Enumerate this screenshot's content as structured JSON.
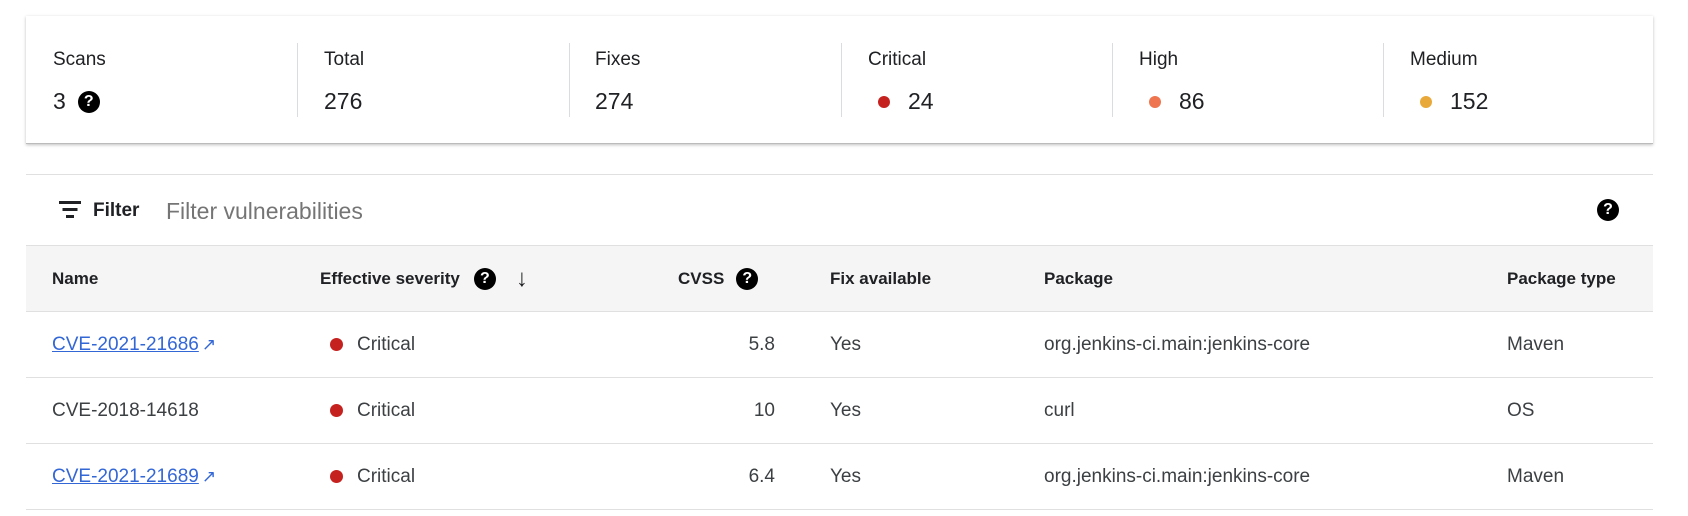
{
  "summary": {
    "scans": {
      "label": "Scans",
      "value": "3"
    },
    "total": {
      "label": "Total",
      "value": "276"
    },
    "fixes": {
      "label": "Fixes",
      "value": "274"
    },
    "critical": {
      "label": "Critical",
      "value": "24",
      "color": "#c5221f"
    },
    "high": {
      "label": "High",
      "value": "86",
      "color": "#ee7550"
    },
    "medium": {
      "label": "Medium",
      "value": "152",
      "color": "#e8a93a"
    }
  },
  "filter": {
    "label": "Filter",
    "placeholder": "Filter vulnerabilities",
    "icon": "filter-list-icon"
  },
  "table": {
    "columns": [
      "Name",
      "Effective severity",
      "CVSS",
      "Fix available",
      "Package",
      "Package type"
    ],
    "sort": {
      "column": "Effective severity",
      "direction": "descending"
    },
    "rows": [
      {
        "name": "CVE-2021-21686",
        "link": true,
        "severity": "Critical",
        "cvss": "5.8",
        "fix": "Yes",
        "package": "org.jenkins-ci.main:jenkins-core",
        "type": "Maven"
      },
      {
        "name": "CVE-2018-14618",
        "link": false,
        "severity": "Critical",
        "cvss": "10",
        "fix": "Yes",
        "package": "curl",
        "type": "OS"
      },
      {
        "name": "CVE-2021-21689",
        "link": true,
        "severity": "Critical",
        "cvss": "6.4",
        "fix": "Yes",
        "package": "org.jenkins-ci.main:jenkins-core",
        "type": "Maven"
      }
    ]
  },
  "colors": {
    "critical": "#c5221f",
    "link": "#3367d6"
  }
}
